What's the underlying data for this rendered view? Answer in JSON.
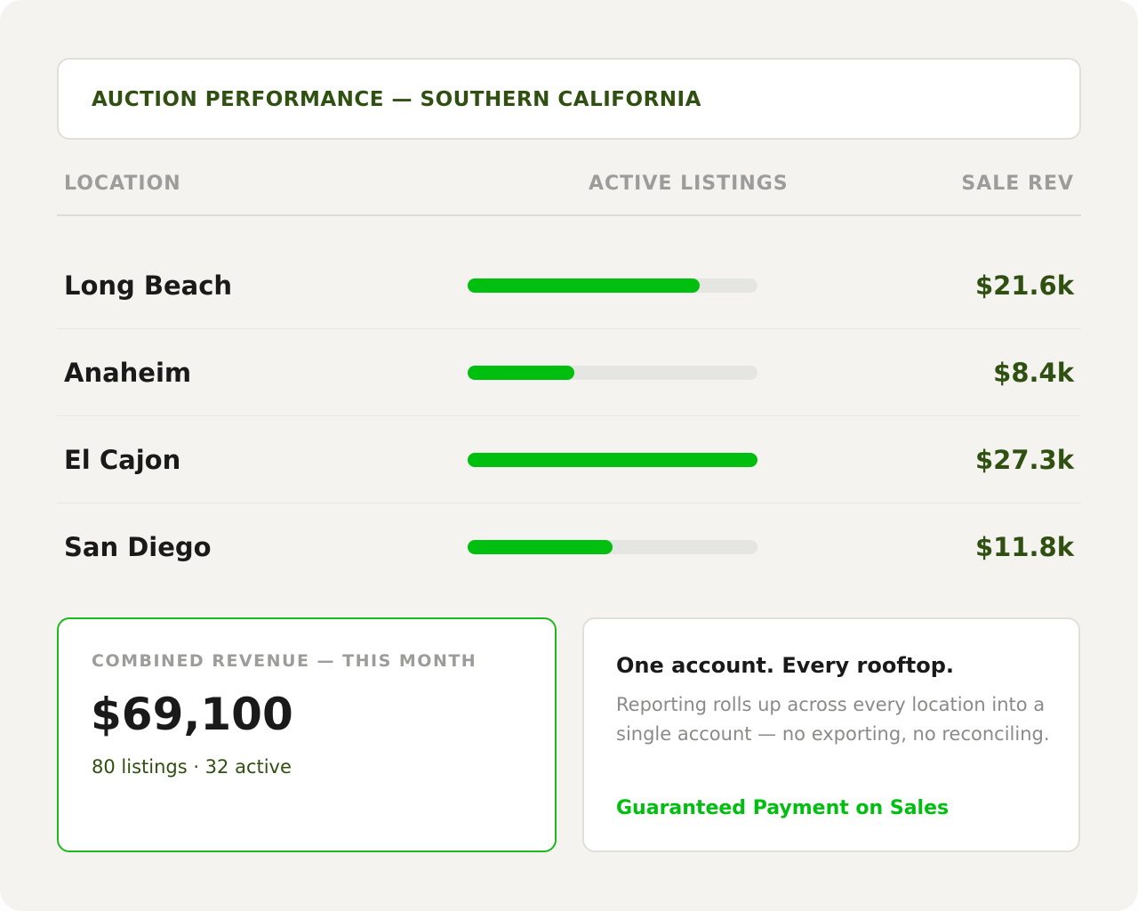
{
  "header": {
    "title": "AUCTION PERFORMANCE — SOUTHERN CALIFORNIA"
  },
  "table": {
    "columns": [
      "LOCATION",
      "ACTIVE LISTINGS",
      "SALE REV"
    ],
    "listings_scale": [
      0,
      30
    ],
    "bar_color": "#00bf0f",
    "rows": [
      {
        "location": "Long Beach",
        "listings": 24,
        "revenue": "$21.6k"
      },
      {
        "location": "Anaheim",
        "listings": 11,
        "revenue": "$8.4k"
      },
      {
        "location": "El Cajon",
        "listings": 30,
        "revenue": "$27.3k"
      },
      {
        "location": "San Diego",
        "listings": 15,
        "revenue": "$11.8k"
      }
    ]
  },
  "summary": {
    "label": "COMBINED REVENUE — THIS MONTH",
    "value": "$69,100",
    "detail": "80 listings · 32 active"
  },
  "info": {
    "title": "One account. Every rooftop.",
    "body": "Reporting rolls up across every location into a single account — no exporting, no reconciling.",
    "link": "Guaranteed Payment on Sales"
  }
}
